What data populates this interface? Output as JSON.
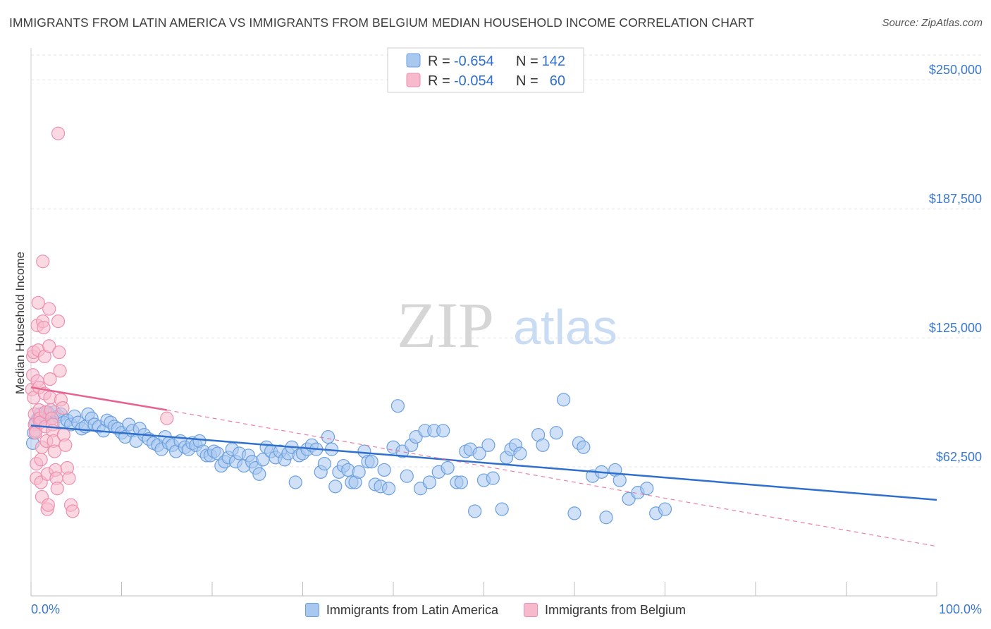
{
  "header": {
    "title": "IMMIGRANTS FROM LATIN AMERICA VS IMMIGRANTS FROM BELGIUM MEDIAN HOUSEHOLD INCOME CORRELATION CHART",
    "source": "Source: ZipAtlas.com"
  },
  "watermark": {
    "zip": "ZIP",
    "atlas": "atlas"
  },
  "legend": {
    "r_label": "R =",
    "n_label": "N =",
    "rows": [
      {
        "r": "-0.654",
        "n": "142"
      },
      {
        "r": "-0.054",
        "n": "60"
      }
    ]
  },
  "colors": {
    "blue_fill": "#a9c8f0",
    "blue_stroke": "#6a9fe0",
    "blue_line": "#2f6fce",
    "pink_fill": "#f7b9cc",
    "pink_stroke": "#ee8fae",
    "pink_line": "#e8628f",
    "tick_text": "#3a78c9",
    "grid": "#e3e3e3"
  },
  "chart_data": {
    "type": "scatter",
    "title": "IMMIGRANTS FROM LATIN AMERICA VS IMMIGRANTS FROM BELGIUM MEDIAN HOUSEHOLD INCOME CORRELATION CHART",
    "xlabel": "",
    "ylabel": "Median Household Income",
    "xlim": [
      0,
      100
    ],
    "ylim": [
      0,
      262000
    ],
    "x_tick_labels": [
      "0.0%",
      "100.0%"
    ],
    "y_ticks": [
      62500,
      125000,
      187500,
      250000
    ],
    "y_tick_labels": [
      "$62,500",
      "$125,000",
      "$187,500",
      "$250,000"
    ],
    "grid": true,
    "legend_placement": "top-center",
    "series": [
      {
        "name": "Immigrants from Latin America",
        "color": "#a9c8f0",
        "trend": {
          "x": [
            0,
            100
          ],
          "y": [
            82500,
            46500
          ],
          "style": "solid"
        },
        "points": [
          [
            0.2,
            74000
          ],
          [
            0.3,
            79000
          ],
          [
            0.5,
            84000
          ],
          [
            0.8,
            86000
          ],
          [
            1.0,
            88000
          ],
          [
            1.2,
            85000
          ],
          [
            1.5,
            87000
          ],
          [
            1.8,
            89000
          ],
          [
            2.0,
            88000
          ],
          [
            2.3,
            86000
          ],
          [
            2.6,
            89000
          ],
          [
            3.0,
            87000
          ],
          [
            3.3,
            88000
          ],
          [
            3.6,
            84000
          ],
          [
            4.0,
            85000
          ],
          [
            4.4,
            83000
          ],
          [
            4.8,
            87000
          ],
          [
            5.2,
            84000
          ],
          [
            5.6,
            81000
          ],
          [
            6.0,
            82000
          ],
          [
            6.3,
            88000
          ],
          [
            6.7,
            86000
          ],
          [
            7.0,
            83000
          ],
          [
            7.5,
            82000
          ],
          [
            8.0,
            80000
          ],
          [
            8.4,
            85000
          ],
          [
            8.8,
            84000
          ],
          [
            9.2,
            82000
          ],
          [
            9.6,
            81000
          ],
          [
            10.0,
            79000
          ],
          [
            10.4,
            77000
          ],
          [
            10.8,
            83000
          ],
          [
            11.2,
            80000
          ],
          [
            11.6,
            75000
          ],
          [
            12.0,
            81000
          ],
          [
            12.5,
            78000
          ],
          [
            13.0,
            76000
          ],
          [
            13.5,
            74000
          ],
          [
            14.0,
            73000
          ],
          [
            14.4,
            71000
          ],
          [
            14.8,
            77000
          ],
          [
            15.2,
            74000
          ],
          [
            15.6,
            73000
          ],
          [
            16.0,
            70000
          ],
          [
            16.5,
            75000
          ],
          [
            17.0,
            72000
          ],
          [
            17.4,
            71000
          ],
          [
            17.8,
            74000
          ],
          [
            18.2,
            73000
          ],
          [
            18.6,
            75000
          ],
          [
            19.0,
            70000
          ],
          [
            19.4,
            68000
          ],
          [
            19.8,
            68000
          ],
          [
            20.2,
            70000
          ],
          [
            20.6,
            69000
          ],
          [
            21.0,
            63000
          ],
          [
            21.4,
            65000
          ],
          [
            21.8,
            67000
          ],
          [
            22.2,
            71000
          ],
          [
            22.6,
            65000
          ],
          [
            23.0,
            69000
          ],
          [
            23.5,
            63000
          ],
          [
            24.0,
            68000
          ],
          [
            24.4,
            65000
          ],
          [
            24.8,
            62000
          ],
          [
            25.2,
            59000
          ],
          [
            25.6,
            66000
          ],
          [
            26.0,
            72000
          ],
          [
            26.5,
            70000
          ],
          [
            27.0,
            67000
          ],
          [
            27.5,
            70000
          ],
          [
            28.0,
            66000
          ],
          [
            28.4,
            69000
          ],
          [
            28.8,
            72000
          ],
          [
            29.2,
            55000
          ],
          [
            29.6,
            68000
          ],
          [
            30.0,
            69000
          ],
          [
            30.5,
            71000
          ],
          [
            31.0,
            73000
          ],
          [
            31.5,
            71000
          ],
          [
            32.0,
            60000
          ],
          [
            32.4,
            64000
          ],
          [
            32.8,
            77000
          ],
          [
            33.2,
            71000
          ],
          [
            33.6,
            53000
          ],
          [
            34.0,
            60000
          ],
          [
            34.5,
            63000
          ],
          [
            35.0,
            61000
          ],
          [
            35.4,
            55000
          ],
          [
            35.8,
            55000
          ],
          [
            36.2,
            60000
          ],
          [
            36.8,
            70000
          ],
          [
            37.2,
            65000
          ],
          [
            37.6,
            65000
          ],
          [
            38.0,
            54000
          ],
          [
            38.6,
            53000
          ],
          [
            39.0,
            61000
          ],
          [
            39.5,
            52000
          ],
          [
            40.0,
            72000
          ],
          [
            40.5,
            92000
          ],
          [
            41.0,
            70000
          ],
          [
            41.5,
            58000
          ],
          [
            42.0,
            73000
          ],
          [
            42.5,
            77000
          ],
          [
            43.0,
            52000
          ],
          [
            43.5,
            80000
          ],
          [
            44.0,
            55000
          ],
          [
            44.5,
            80000
          ],
          [
            45.0,
            60000
          ],
          [
            45.5,
            80000
          ],
          [
            46.0,
            62000
          ],
          [
            47.0,
            55000
          ],
          [
            47.5,
            55000
          ],
          [
            48.0,
            70000
          ],
          [
            48.5,
            71000
          ],
          [
            49.0,
            41000
          ],
          [
            49.5,
            69000
          ],
          [
            50.0,
            56000
          ],
          [
            50.5,
            73000
          ],
          [
            51.0,
            57000
          ],
          [
            52.0,
            42000
          ],
          [
            52.5,
            67000
          ],
          [
            53.0,
            71000
          ],
          [
            53.5,
            73000
          ],
          [
            54.0,
            69000
          ],
          [
            56.0,
            78000
          ],
          [
            56.5,
            73000
          ],
          [
            58.0,
            79000
          ],
          [
            58.8,
            95000
          ],
          [
            60.0,
            40000
          ],
          [
            60.5,
            74000
          ],
          [
            61.0,
            72000
          ],
          [
            62.0,
            58000
          ],
          [
            63.0,
            60000
          ],
          [
            63.5,
            38000
          ],
          [
            64.5,
            61000
          ],
          [
            65.0,
            56000
          ],
          [
            66.0,
            47000
          ],
          [
            67.0,
            50000
          ],
          [
            68.0,
            52000
          ],
          [
            69.0,
            40000
          ],
          [
            70.0,
            42000
          ]
        ]
      },
      {
        "name": "Immigrants from Belgium",
        "color": "#f7b9cc",
        "trend": {
          "x": [
            0,
            15
          ],
          "y": [
            101000,
            90000
          ],
          "style": "solid",
          "extended": {
            "x": [
              15,
              100
            ],
            "y": [
              90000,
              24000
            ],
            "style": "dashed"
          }
        },
        "points": [
          [
            0.1,
            100000
          ],
          [
            0.2,
            107000
          ],
          [
            0.2,
            116000
          ],
          [
            0.3,
            118000
          ],
          [
            0.3,
            96000
          ],
          [
            0.4,
            88000
          ],
          [
            0.4,
            83000
          ],
          [
            0.5,
            80000
          ],
          [
            0.5,
            79000
          ],
          [
            0.6,
            57000
          ],
          [
            0.6,
            64000
          ],
          [
            0.7,
            104000
          ],
          [
            0.7,
            131000
          ],
          [
            0.8,
            142000
          ],
          [
            0.8,
            119000
          ],
          [
            0.9,
            101000
          ],
          [
            0.9,
            90000
          ],
          [
            1.0,
            86000
          ],
          [
            1.0,
            84000
          ],
          [
            1.1,
            66000
          ],
          [
            1.1,
            55000
          ],
          [
            1.2,
            48000
          ],
          [
            1.2,
            72000
          ],
          [
            1.3,
            162000
          ],
          [
            1.3,
            133000
          ],
          [
            1.4,
            130000
          ],
          [
            1.5,
            116000
          ],
          [
            1.5,
            98000
          ],
          [
            1.6,
            89000
          ],
          [
            1.6,
            82000
          ],
          [
            1.7,
            75000
          ],
          [
            1.8,
            59000
          ],
          [
            1.8,
            42000
          ],
          [
            1.9,
            44000
          ],
          [
            2.0,
            139000
          ],
          [
            2.0,
            121000
          ],
          [
            2.1,
            105000
          ],
          [
            2.1,
            96000
          ],
          [
            2.2,
            90000
          ],
          [
            2.3,
            86000
          ],
          [
            2.4,
            83000
          ],
          [
            2.4,
            80000
          ],
          [
            2.5,
            75000
          ],
          [
            2.6,
            70000
          ],
          [
            2.7,
            61000
          ],
          [
            2.8,
            57000
          ],
          [
            2.9,
            52000
          ],
          [
            3.0,
            224000
          ],
          [
            3.0,
            133000
          ],
          [
            3.1,
            118000
          ],
          [
            3.2,
            109000
          ],
          [
            3.3,
            95000
          ],
          [
            3.5,
            91000
          ],
          [
            3.6,
            78000
          ],
          [
            3.8,
            73000
          ],
          [
            4.0,
            62000
          ],
          [
            4.2,
            57000
          ],
          [
            4.4,
            44000
          ],
          [
            4.6,
            41000
          ],
          [
            15.0,
            86000
          ]
        ]
      }
    ]
  }
}
